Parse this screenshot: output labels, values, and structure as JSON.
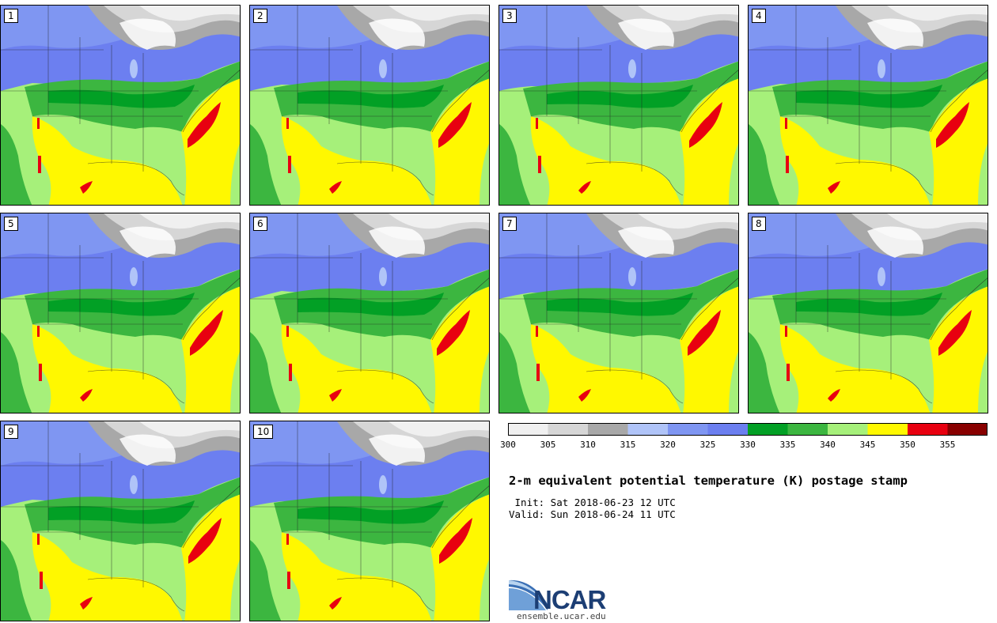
{
  "panels": [
    "1",
    "2",
    "3",
    "4",
    "5",
    "6",
    "7",
    "8",
    "9",
    "10"
  ],
  "legend": {
    "colors": [
      "#f0f0f0",
      "#d6d6d6",
      "#a8a8a8",
      "#b0c4f8",
      "#7f96f2",
      "#6c7ff0",
      "#02a025",
      "#3cb640",
      "#a6f07a",
      "#fff800",
      "#e80010",
      "#880000"
    ],
    "tick_labels": [
      "300",
      "305",
      "310",
      "315",
      "320",
      "325",
      "330",
      "335",
      "340",
      "345",
      "350",
      "355"
    ]
  },
  "title": "2-m equivalent potential temperature (K) postage stamp",
  "init": " Init: Sat 2018-06-23 12 UTC",
  "valid": "Valid: Sun 2018-06-24 11 UTC",
  "logo": {
    "name": "NCAR",
    "url": "ensemble.ucar.edu"
  }
}
